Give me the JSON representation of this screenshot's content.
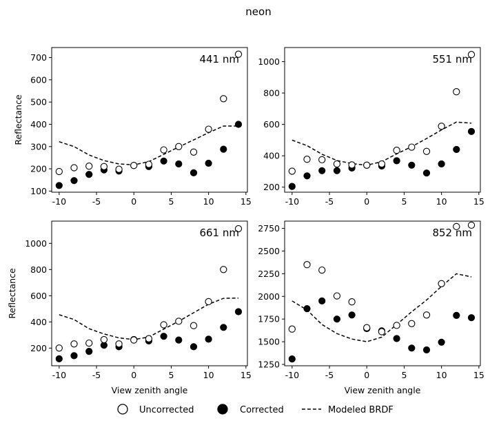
{
  "figure": {
    "title": "neon"
  },
  "legend": {
    "uncorrected": "Uncorrected",
    "corrected": "Corrected",
    "modeled": "Modeled BRDF"
  },
  "chart_data": [
    {
      "type": "scatter",
      "title": "441 nm",
      "xlabel": "",
      "ylabel": "Reflectance",
      "xlim": [
        -11,
        15.2
      ],
      "ylim": [
        95,
        745
      ],
      "xticks": [
        -10,
        -5,
        0,
        5,
        10,
        15
      ],
      "yticks": [
        100,
        200,
        300,
        400,
        500,
        600,
        700
      ],
      "x": [
        -10,
        -8,
        -6,
        -4,
        -2,
        0,
        2,
        4,
        6,
        8,
        10,
        12,
        14
      ],
      "series": [
        {
          "name": "Uncorrected",
          "values": [
            188,
            205,
            212,
            210,
            198,
            215,
            220,
            285,
            300,
            275,
            378,
            515,
            715
          ]
        },
        {
          "name": "Corrected",
          "values": [
            125,
            147,
            175,
            195,
            190,
            215,
            210,
            235,
            222,
            182,
            225,
            288,
            400
          ]
        },
        {
          "name": "Modeled BRDF",
          "values": [
            322,
            300,
            262,
            237,
            222,
            218,
            232,
            265,
            298,
            330,
            362,
            392,
            392
          ]
        }
      ]
    },
    {
      "type": "scatter",
      "title": "551 nm",
      "xlabel": "",
      "ylabel": "",
      "xlim": [
        -11,
        15.2
      ],
      "ylim": [
        168,
        1090
      ],
      "xticks": [
        -10,
        -5,
        0,
        5,
        10,
        15
      ],
      "yticks": [
        200,
        400,
        600,
        800,
        1000
      ],
      "x": [
        -10,
        -8,
        -6,
        -4,
        -2,
        0,
        2,
        4,
        6,
        8,
        10,
        12,
        14
      ],
      "series": [
        {
          "name": "Uncorrected",
          "values": [
            302,
            378,
            375,
            348,
            342,
            340,
            348,
            435,
            455,
            428,
            588,
            808,
            1045
          ]
        },
        {
          "name": "Corrected",
          "values": [
            205,
            272,
            305,
            305,
            322,
            340,
            335,
            368,
            340,
            290,
            348,
            440,
            555
          ]
        },
        {
          "name": "Modeled BRDF",
          "values": [
            500,
            465,
            410,
            370,
            350,
            340,
            362,
            412,
            458,
            510,
            565,
            615,
            608
          ]
        }
      ]
    },
    {
      "type": "scatter",
      "title": "661 nm",
      "xlabel": "View zenith angle",
      "ylabel": "Reflectance",
      "xlim": [
        -11,
        15.2
      ],
      "ylim": [
        65,
        1170
      ],
      "xticks": [
        -10,
        -5,
        0,
        5,
        10,
        15
      ],
      "yticks": [
        200,
        400,
        600,
        800,
        1000
      ],
      "x": [
        -10,
        -8,
        -6,
        -4,
        -2,
        0,
        2,
        4,
        6,
        8,
        10,
        12,
        14
      ],
      "series": [
        {
          "name": "Uncorrected",
          "values": [
            200,
            232,
            238,
            265,
            232,
            262,
            272,
            378,
            405,
            372,
            555,
            800,
            1112
          ]
        },
        {
          "name": "Corrected",
          "values": [
            118,
            142,
            175,
            222,
            210,
            265,
            255,
            290,
            262,
            210,
            268,
            358,
            478
          ]
        },
        {
          "name": "Modeled BRDF",
          "values": [
            455,
            418,
            348,
            308,
            278,
            265,
            285,
            345,
            405,
            470,
            535,
            580,
            582
          ]
        }
      ]
    },
    {
      "type": "scatter",
      "title": "852 nm",
      "xlabel": "View zenith angle",
      "ylabel": "",
      "xlim": [
        -11,
        15.2
      ],
      "ylim": [
        1235,
        2830
      ],
      "xticks": [
        -10,
        -5,
        0,
        5,
        10,
        15
      ],
      "yticks": [
        1250,
        1500,
        1750,
        2000,
        2250,
        2500,
        2750
      ],
      "x": [
        -10,
        -8,
        -6,
        -4,
        -2,
        0,
        2,
        4,
        6,
        8,
        10,
        12,
        14
      ],
      "series": [
        {
          "name": "Uncorrected",
          "values": [
            1640,
            2350,
            2290,
            2005,
            1940,
            1655,
            1610,
            1680,
            1700,
            1795,
            2140,
            2770,
            2785
          ]
        },
        {
          "name": "Corrected",
          "values": [
            1310,
            1865,
            1950,
            1750,
            1795,
            1645,
            1620,
            1535,
            1430,
            1410,
            1495,
            1790,
            1765
          ]
        },
        {
          "name": "Modeled BRDF",
          "values": [
            1950,
            1850,
            1690,
            1590,
            1530,
            1500,
            1550,
            1690,
            1830,
            1960,
            2110,
            2250,
            2215
          ]
        }
      ]
    }
  ]
}
